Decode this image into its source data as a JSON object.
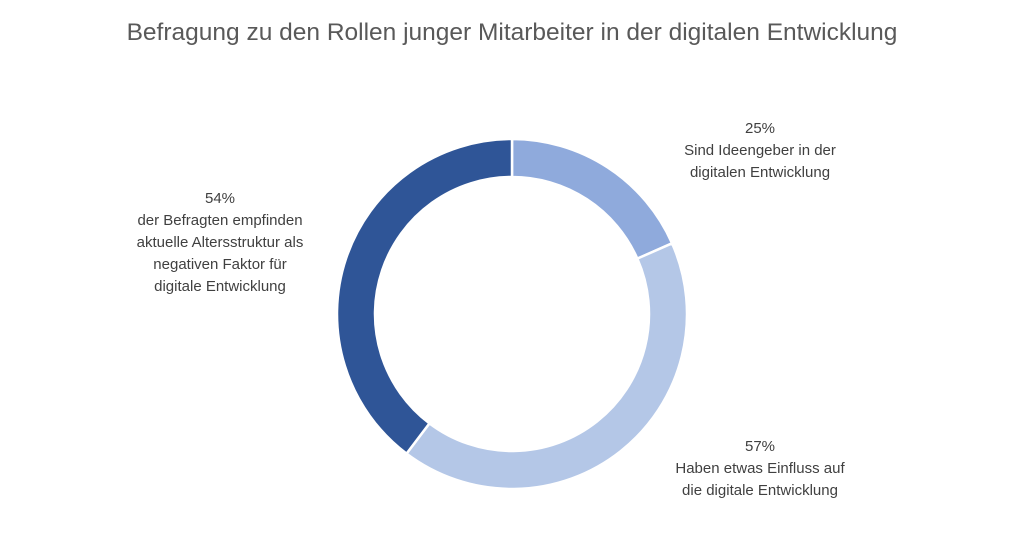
{
  "chart_data": {
    "type": "pie",
    "variant": "donut",
    "title": "Befragung zu den Rollen junger Mitarbeiter in der digitalen Entwicklung",
    "slices": [
      {
        "label": "Sind Ideengeber in der\ndigitalen Entwicklung",
        "percent_label": "25%",
        "value": 25,
        "color": "#8faadc"
      },
      {
        "label": "Haben etwas Einfluss auf\ndie digitale Entwicklung",
        "percent_label": "57%",
        "value": 57,
        "color": "#b4c7e7"
      },
      {
        "label": "der Befragten empfinden\naktuelle Altersstruktur als\nnegativen Faktor für\ndigitale Entwicklung",
        "percent_label": "54%",
        "value": 54,
        "color": "#2f5597"
      }
    ]
  }
}
